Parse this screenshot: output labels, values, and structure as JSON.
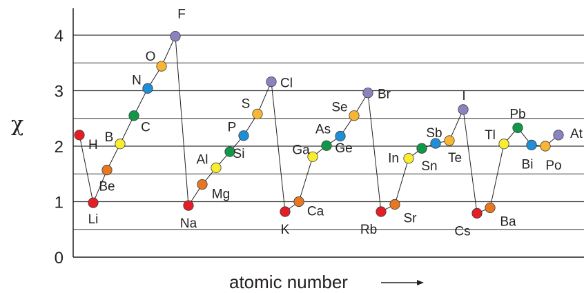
{
  "chart_data": {
    "type": "line",
    "title": "",
    "xlabel": "atomic number",
    "ylabel": "χ",
    "ylim": [
      0,
      4.5
    ],
    "yticks": [
      "0",
      "1",
      "2",
      "3",
      "4"
    ],
    "grid": true,
    "categories": [
      "H",
      "Li",
      "Be",
      "B",
      "C",
      "N",
      "O",
      "F",
      "Na",
      "Mg",
      "Al",
      "Si",
      "P",
      "S",
      "Cl",
      "K",
      "Ca",
      "Ga",
      "Ge",
      "As",
      "Se",
      "Br",
      "Rb",
      "Sr",
      "In",
      "Sn",
      "Sb",
      "Te",
      "I",
      "Cs",
      "Ba",
      "Tl",
      "Pb",
      "Bi",
      "Po",
      "At"
    ],
    "values": [
      2.2,
      0.98,
      1.57,
      2.04,
      2.55,
      3.04,
      3.44,
      3.98,
      0.93,
      1.31,
      1.61,
      1.9,
      2.19,
      2.58,
      3.16,
      0.82,
      1.0,
      1.81,
      2.01,
      2.18,
      2.55,
      2.96,
      0.82,
      0.95,
      1.78,
      1.96,
      2.05,
      2.1,
      2.66,
      0.79,
      0.89,
      2.04,
      2.33,
      2.02,
      2.0,
      2.2
    ],
    "point_colors": [
      "#e41e26",
      "#e41e26",
      "#e87722",
      "#f8ee2f",
      "#109848",
      "#1e8fd6",
      "#f8b632",
      "#8984c0",
      "#e41e26",
      "#e87722",
      "#f8ee2f",
      "#109848",
      "#1e8fd6",
      "#f8b632",
      "#8984c0",
      "#e41e26",
      "#e87722",
      "#f8ee2f",
      "#109848",
      "#1e8fd6",
      "#f8b632",
      "#8984c0",
      "#e41e26",
      "#e87722",
      "#f8ee2f",
      "#109848",
      "#1e8fd6",
      "#f8b632",
      "#8984c0",
      "#e41e26",
      "#e87722",
      "#f8ee2f",
      "#109848",
      "#1e8fd6",
      "#f8b632",
      "#8984c0"
    ],
    "line_color": "#231f20",
    "grid_color": "#3a3a3a"
  }
}
